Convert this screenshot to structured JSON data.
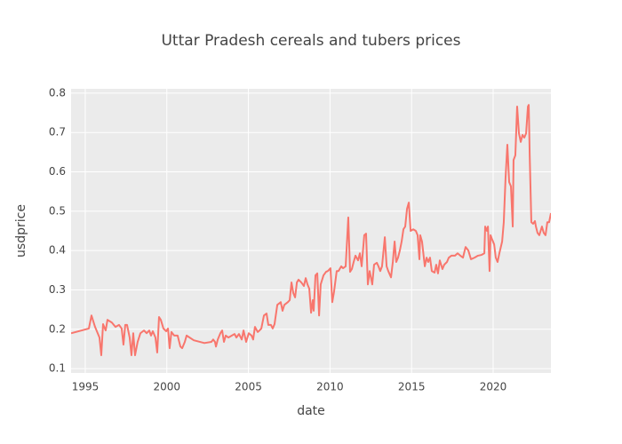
{
  "chart_data": {
    "type": "line",
    "title": "Uttar Pradesh cereals and tubers prices",
    "x_label": "date",
    "y_label": "usdprice",
    "xlim": [
      1994.13,
      2023.54
    ],
    "xticks": [
      1995,
      2000,
      2005,
      2010,
      2015,
      2020
    ],
    "ylim": [
      0.089,
      0.811
    ],
    "yticks": [
      0.1,
      0.2,
      0.3,
      0.4,
      0.5,
      0.6,
      0.7,
      0.8
    ],
    "grid": true,
    "x": [
      1994.13,
      1995.22,
      1995.38,
      1995.6,
      1995.87,
      1995.98,
      1996.09,
      1996.25,
      1996.36,
      1996.63,
      1996.85,
      1997.07,
      1997.23,
      1997.34,
      1997.45,
      1997.56,
      1997.72,
      1997.83,
      1997.94,
      1998.05,
      1998.21,
      1998.38,
      1998.6,
      1998.76,
      1998.92,
      1999.03,
      1999.14,
      1999.3,
      1999.41,
      1999.52,
      1999.63,
      1999.79,
      1999.96,
      2000.07,
      2000.17,
      2000.28,
      2000.45,
      2000.66,
      2000.83,
      2000.94,
      2001.1,
      2001.21,
      2001.65,
      2002.3,
      2002.73,
      2002.84,
      2002.95,
      2003.01,
      2003.12,
      2003.28,
      2003.39,
      2003.5,
      2003.61,
      2003.77,
      2004.15,
      2004.26,
      2004.42,
      2004.59,
      2004.7,
      2004.86,
      2005.02,
      2005.19,
      2005.29,
      2005.4,
      2005.57,
      2005.68,
      2005.79,
      2005.95,
      2006.11,
      2006.22,
      2006.38,
      2006.49,
      2006.6,
      2006.77,
      2006.98,
      2007.09,
      2007.2,
      2007.42,
      2007.53,
      2007.64,
      2007.75,
      2007.86,
      2007.97,
      2008.07,
      2008.24,
      2008.4,
      2008.51,
      2008.62,
      2008.73,
      2008.84,
      2008.94,
      2009.0,
      2009.11,
      2009.22,
      2009.33,
      2009.43,
      2009.6,
      2009.76,
      2009.87,
      2010.03,
      2010.14,
      2010.25,
      2010.41,
      2010.52,
      2010.69,
      2010.8,
      2010.96,
      2011.12,
      2011.23,
      2011.34,
      2011.45,
      2011.56,
      2011.72,
      2011.83,
      2011.94,
      2012.1,
      2012.21,
      2012.32,
      2012.43,
      2012.59,
      2012.7,
      2012.87,
      2012.97,
      2013.08,
      2013.19,
      2013.36,
      2013.47,
      2013.57,
      2013.74,
      2013.85,
      2013.96,
      2014.06,
      2014.17,
      2014.28,
      2014.39,
      2014.5,
      2014.61,
      2014.72,
      2014.83,
      2014.94,
      2015.1,
      2015.26,
      2015.37,
      2015.48,
      2015.53,
      2015.64,
      2015.81,
      2015.92,
      2016.02,
      2016.13,
      2016.24,
      2016.41,
      2016.51,
      2016.62,
      2016.73,
      2016.89,
      2017.0,
      2017.17,
      2017.28,
      2017.44,
      2017.66,
      2017.82,
      2017.99,
      2018.15,
      2018.31,
      2018.48,
      2018.64,
      2018.86,
      2019.07,
      2019.29,
      2019.46,
      2019.51,
      2019.62,
      2019.68,
      2019.78,
      2019.84,
      2019.95,
      2020.06,
      2020.16,
      2020.27,
      2020.38,
      2020.55,
      2020.65,
      2020.76,
      2020.87,
      2020.98,
      2021.09,
      2021.2,
      2021.25,
      2021.36,
      2021.47,
      2021.58,
      2021.69,
      2021.8,
      2021.91,
      2022.02,
      2022.13,
      2022.18,
      2022.24,
      2022.34,
      2022.45,
      2022.56,
      2022.62,
      2022.72,
      2022.83,
      2022.99,
      2023.1,
      2023.21,
      2023.32,
      2023.43,
      2023.54
    ],
    "series": [
      {
        "color": "#f8766d",
        "values": [
          0.19,
          0.202,
          0.235,
          0.206,
          0.179,
          0.134,
          0.213,
          0.197,
          0.224,
          0.217,
          0.206,
          0.211,
          0.202,
          0.161,
          0.211,
          0.211,
          0.179,
          0.134,
          0.19,
          0.134,
          0.168,
          0.19,
          0.197,
          0.19,
          0.197,
          0.184,
          0.195,
          0.179,
          0.141,
          0.231,
          0.224,
          0.202,
          0.195,
          0.202,
          0.152,
          0.193,
          0.184,
          0.184,
          0.156,
          0.152,
          0.168,
          0.184,
          0.172,
          0.165,
          0.168,
          0.174,
          0.168,
          0.156,
          0.174,
          0.19,
          0.197,
          0.168,
          0.184,
          0.179,
          0.188,
          0.179,
          0.188,
          0.174,
          0.197,
          0.168,
          0.19,
          0.184,
          0.174,
          0.206,
          0.193,
          0.197,
          0.202,
          0.235,
          0.24,
          0.211,
          0.211,
          0.202,
          0.213,
          0.262,
          0.269,
          0.247,
          0.262,
          0.269,
          0.274,
          0.319,
          0.292,
          0.281,
          0.319,
          0.326,
          0.319,
          0.31,
          0.33,
          0.314,
          0.303,
          0.242,
          0.274,
          0.247,
          0.337,
          0.342,
          0.235,
          0.314,
          0.337,
          0.346,
          0.348,
          0.355,
          0.269,
          0.296,
          0.348,
          0.348,
          0.36,
          0.355,
          0.36,
          0.484,
          0.346,
          0.353,
          0.371,
          0.387,
          0.375,
          0.393,
          0.36,
          0.439,
          0.443,
          0.314,
          0.348,
          0.314,
          0.364,
          0.369,
          0.36,
          0.348,
          0.36,
          0.434,
          0.36,
          0.348,
          0.332,
          0.371,
          0.423,
          0.371,
          0.382,
          0.4,
          0.423,
          0.454,
          0.461,
          0.506,
          0.522,
          0.45,
          0.454,
          0.45,
          0.439,
          0.378,
          0.439,
          0.423,
          0.36,
          0.382,
          0.371,
          0.382,
          0.348,
          0.344,
          0.364,
          0.342,
          0.375,
          0.353,
          0.364,
          0.371,
          0.382,
          0.387,
          0.387,
          0.393,
          0.387,
          0.382,
          0.409,
          0.4,
          0.378,
          0.382,
          0.387,
          0.389,
          0.393,
          0.461,
          0.45,
          0.461,
          0.348,
          0.439,
          0.427,
          0.416,
          0.382,
          0.371,
          0.393,
          0.423,
          0.472,
          0.585,
          0.669,
          0.574,
          0.563,
          0.461,
          0.63,
          0.642,
          0.766,
          0.698,
          0.676,
          0.694,
          0.687,
          0.698,
          0.766,
          0.77,
          0.642,
          0.472,
          0.468,
          0.475,
          0.461,
          0.445,
          0.439,
          0.461,
          0.445,
          0.439,
          0.472,
          0.472,
          0.495
        ]
      }
    ]
  }
}
